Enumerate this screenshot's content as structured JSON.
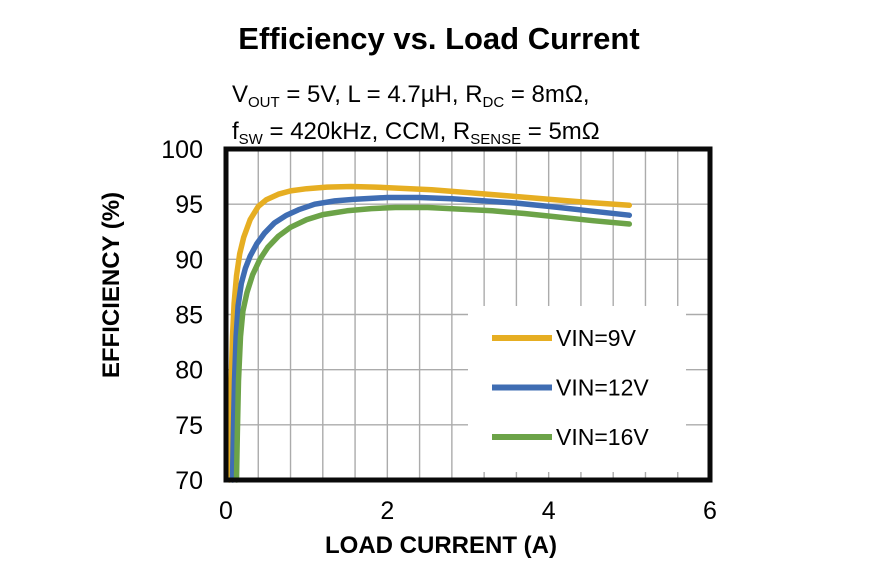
{
  "title": "Efficiency vs. Load Current",
  "subtitle": {
    "line1": [
      {
        "t": "V"
      },
      {
        "t": "OUT",
        "sub": true
      },
      {
        "t": " = 5V, L = 4.7µH, R"
      },
      {
        "t": "DC",
        "sub": true
      },
      {
        "t": " = 8mΩ,"
      }
    ],
    "line2": [
      {
        "t": "f"
      },
      {
        "t": "SW",
        "sub": true
      },
      {
        "t": " = 420kHz, CCM, R"
      },
      {
        "t": "SENSE",
        "sub": true
      },
      {
        "t": " = 5mΩ"
      }
    ]
  },
  "colors": {
    "background": "#FFFFFF",
    "frame": "#0A0A0A",
    "grid": "#ABABAB",
    "text": "#000000"
  },
  "chart_data": {
    "type": "line",
    "title": "Efficiency vs. Load Current",
    "xlabel": "LOAD CURRENT (A)",
    "ylabel": "EFFICIENCY (%)",
    "xlim": [
      0,
      6
    ],
    "ylim": [
      70,
      100
    ],
    "x_major_ticks": [
      0,
      2,
      4,
      6
    ],
    "x_minor_tick_step": 0.4,
    "y_major_ticks": [
      70,
      75,
      80,
      85,
      90,
      95,
      100
    ],
    "grid": {
      "vertical": "minor lines every 0.4 A",
      "horizontal": "major lines every 5 %"
    },
    "legend_position": "inside lower right, white box over grid",
    "series": [
      {
        "name": "VIN=9V",
        "color": "#E6AE22",
        "points": [
          [
            0.04,
            70
          ],
          [
            0.05,
            74
          ],
          [
            0.065,
            79
          ],
          [
            0.08,
            83
          ],
          [
            0.1,
            86
          ],
          [
            0.13,
            88.5
          ],
          [
            0.17,
            90.5
          ],
          [
            0.22,
            92
          ],
          [
            0.3,
            93.6
          ],
          [
            0.4,
            94.8
          ],
          [
            0.5,
            95.4
          ],
          [
            0.65,
            95.9
          ],
          [
            0.8,
            96.2
          ],
          [
            1.0,
            96.4
          ],
          [
            1.25,
            96.55
          ],
          [
            1.55,
            96.6
          ],
          [
            1.85,
            96.55
          ],
          [
            2.15,
            96.45
          ],
          [
            2.55,
            96.3
          ],
          [
            3.0,
            96.05
          ],
          [
            3.5,
            95.75
          ],
          [
            4.0,
            95.45
          ],
          [
            4.5,
            95.15
          ],
          [
            5.0,
            94.9
          ]
        ]
      },
      {
        "name": "VIN=12V",
        "color": "#3F6DB3",
        "points": [
          [
            0.08,
            70
          ],
          [
            0.09,
            74
          ],
          [
            0.105,
            79
          ],
          [
            0.125,
            83
          ],
          [
            0.15,
            85.8
          ],
          [
            0.19,
            87.8
          ],
          [
            0.24,
            89.2
          ],
          [
            0.3,
            90.3
          ],
          [
            0.38,
            91.4
          ],
          [
            0.48,
            92.4
          ],
          [
            0.6,
            93.3
          ],
          [
            0.75,
            94.0
          ],
          [
            0.9,
            94.5
          ],
          [
            1.1,
            95.0
          ],
          [
            1.35,
            95.3
          ],
          [
            1.6,
            95.45
          ],
          [
            2.0,
            95.6
          ],
          [
            2.4,
            95.6
          ],
          [
            2.8,
            95.5
          ],
          [
            3.2,
            95.3
          ],
          [
            3.6,
            95.1
          ],
          [
            4.0,
            94.8
          ],
          [
            4.5,
            94.4
          ],
          [
            5.0,
            94.0
          ]
        ]
      },
      {
        "name": "VIN=16V",
        "color": "#6CA348",
        "points": [
          [
            0.13,
            70
          ],
          [
            0.14,
            74
          ],
          [
            0.155,
            79
          ],
          [
            0.18,
            83
          ],
          [
            0.21,
            85.3
          ],
          [
            0.26,
            87
          ],
          [
            0.33,
            88.6
          ],
          [
            0.42,
            90
          ],
          [
            0.52,
            91.1
          ],
          [
            0.65,
            92.1
          ],
          [
            0.8,
            92.9
          ],
          [
            1.0,
            93.6
          ],
          [
            1.2,
            94.05
          ],
          [
            1.5,
            94.4
          ],
          [
            1.8,
            94.6
          ],
          [
            2.1,
            94.7
          ],
          [
            2.5,
            94.7
          ],
          [
            2.9,
            94.55
          ],
          [
            3.3,
            94.4
          ],
          [
            3.7,
            94.15
          ],
          [
            4.1,
            93.85
          ],
          [
            4.55,
            93.5
          ],
          [
            5.0,
            93.2
          ]
        ]
      }
    ]
  }
}
